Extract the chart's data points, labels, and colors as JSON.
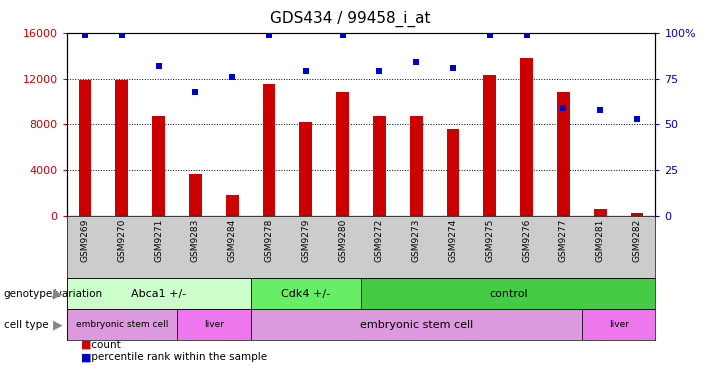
{
  "title": "GDS434 / 99458_i_at",
  "samples": [
    "GSM9269",
    "GSM9270",
    "GSM9271",
    "GSM9283",
    "GSM9284",
    "GSM9278",
    "GSM9279",
    "GSM9280",
    "GSM9272",
    "GSM9273",
    "GSM9274",
    "GSM9275",
    "GSM9276",
    "GSM9277",
    "GSM9281",
    "GSM9282"
  ],
  "counts": [
    11900,
    11900,
    8700,
    3700,
    1800,
    11500,
    8200,
    10800,
    8700,
    8700,
    7600,
    12300,
    13800,
    10800,
    600,
    300
  ],
  "percentiles": [
    99,
    99,
    82,
    68,
    76,
    99,
    79,
    99,
    79,
    84,
    81,
    99,
    99,
    59,
    58,
    53
  ],
  "bar_color": "#cc0000",
  "dot_color": "#0000cc",
  "ylim_left": [
    0,
    16000
  ],
  "ylim_right": [
    0,
    100
  ],
  "yticks_left": [
    0,
    4000,
    8000,
    12000,
    16000
  ],
  "yticks_right": [
    0,
    25,
    50,
    75,
    100
  ],
  "yticklabels_right": [
    "0",
    "25",
    "50",
    "75",
    "100%"
  ],
  "genotype_groups": [
    {
      "label": "Abca1 +/-",
      "start": 0,
      "end": 4,
      "color": "#ccffcc"
    },
    {
      "label": "Cdk4 +/-",
      "start": 5,
      "end": 7,
      "color": "#66ee66"
    },
    {
      "label": "control",
      "start": 8,
      "end": 15,
      "color": "#44cc44"
    }
  ],
  "celltype_groups": [
    {
      "label": "embryonic stem cell",
      "start": 0,
      "end": 2,
      "color": "#dd99dd"
    },
    {
      "label": "liver",
      "start": 3,
      "end": 4,
      "color": "#ee77ee"
    },
    {
      "label": "embryonic stem cell",
      "start": 5,
      "end": 13,
      "color": "#dd99dd"
    },
    {
      "label": "liver",
      "start": 14,
      "end": 15,
      "color": "#ee77ee"
    }
  ],
  "legend_count_color": "#cc0000",
  "legend_dot_color": "#0000cc",
  "background_color": "#ffffff",
  "label_color_left": "#cc0000",
  "label_color_right": "#0000cc",
  "bar_width": 0.35,
  "dot_size": 14
}
